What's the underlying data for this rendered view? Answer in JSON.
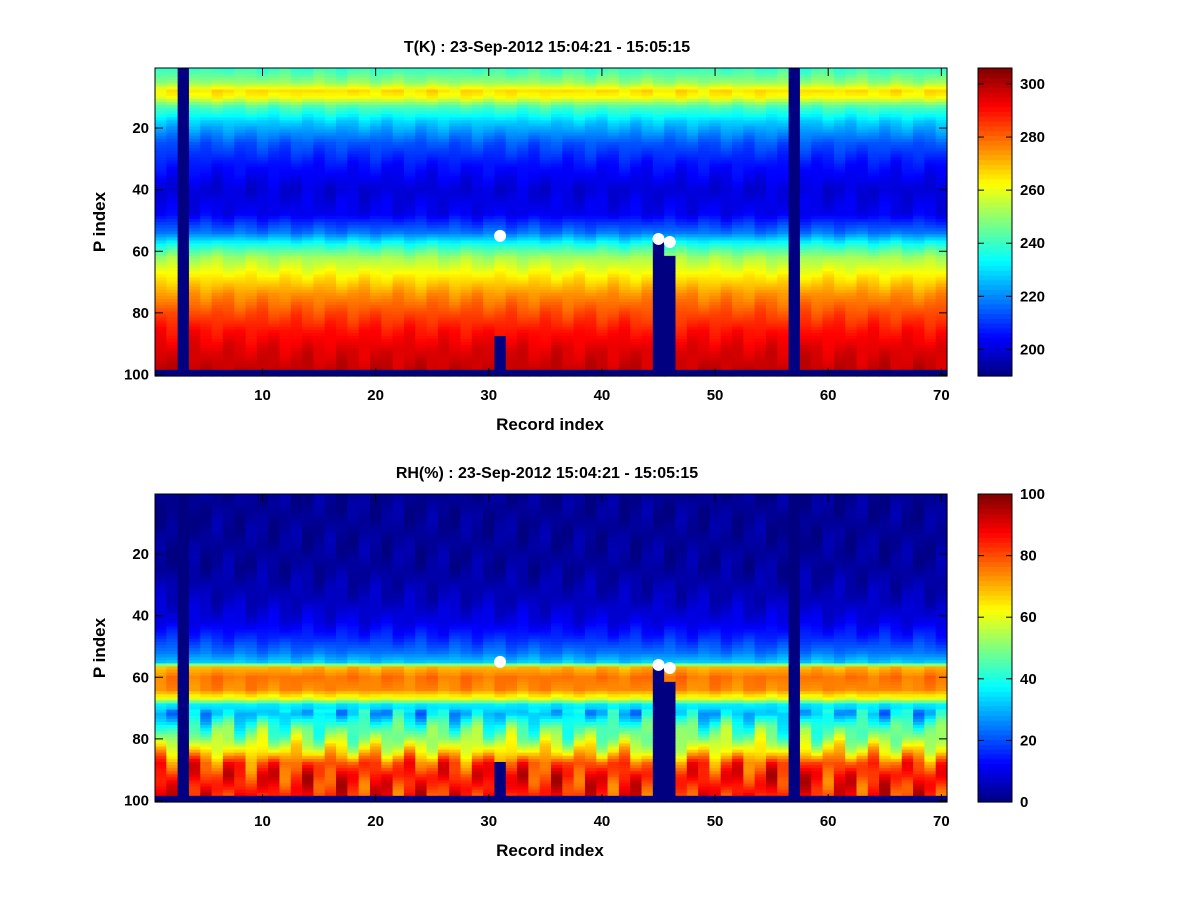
{
  "chart_data": [
    {
      "type": "heatmap",
      "title": "T(K) : 23-Sep-2012 15:04:21 - 15:05:15",
      "xlabel": "Record index",
      "ylabel": "P index",
      "xlim": [
        0.5,
        70.5
      ],
      "ylim": [
        0.5,
        100.5
      ],
      "y_reversed": true,
      "xticks": [
        10,
        20,
        30,
        40,
        50,
        60,
        70
      ],
      "yticks": [
        20,
        40,
        60,
        80,
        100
      ],
      "colormap": "jet",
      "clim": [
        190,
        306
      ],
      "colorbar_ticks": [
        200,
        220,
        240,
        260,
        280,
        300
      ],
      "profile_by_p_index": [
        [
          1,
          240
        ],
        [
          5,
          250
        ],
        [
          8,
          266
        ],
        [
          10,
          262
        ],
        [
          13,
          243
        ],
        [
          18,
          228
        ],
        [
          25,
          214
        ],
        [
          32,
          206
        ],
        [
          40,
          200
        ],
        [
          48,
          203
        ],
        [
          54,
          218
        ],
        [
          58,
          237
        ],
        [
          62,
          252
        ],
        [
          68,
          264
        ],
        [
          74,
          275
        ],
        [
          80,
          283
        ],
        [
          86,
          290
        ],
        [
          92,
          295
        ],
        [
          98,
          298
        ]
      ],
      "missing_records": [
        3,
        57
      ],
      "gaps_from_p_index": [
        {
          "record": 31,
          "from": 88
        },
        {
          "record": 45,
          "from": 56
        },
        {
          "record": 46,
          "from": 62
        }
      ],
      "bottom_fill_from_p_index": 99,
      "markers": [
        {
          "record": 31,
          "p": 55
        },
        {
          "record": 45,
          "p": 56
        },
        {
          "record": 46,
          "p": 57
        }
      ],
      "grid": false
    },
    {
      "type": "heatmap",
      "title": "RH(%) : 23-Sep-2012 15:04:21 - 15:05:15",
      "xlabel": "Record index",
      "ylabel": "P index",
      "xlim": [
        0.5,
        70.5
      ],
      "ylim": [
        0.5,
        100.5
      ],
      "y_reversed": true,
      "xticks": [
        10,
        20,
        30,
        40,
        50,
        60,
        70
      ],
      "yticks": [
        20,
        40,
        60,
        80,
        100
      ],
      "colormap": "jet",
      "clim": [
        0,
        100
      ],
      "colorbar_ticks": [
        0,
        20,
        40,
        60,
        80,
        100
      ],
      "profile_by_p_index": [
        [
          1,
          2
        ],
        [
          25,
          3
        ],
        [
          35,
          6
        ],
        [
          42,
          10
        ],
        [
          47,
          16
        ],
        [
          52,
          24
        ],
        [
          55,
          32
        ],
        [
          57,
          70
        ],
        [
          60,
          76
        ],
        [
          64,
          74
        ],
        [
          67,
          60
        ],
        [
          69,
          36
        ],
        [
          72,
          32
        ],
        [
          76,
          44
        ],
        [
          80,
          52
        ],
        [
          84,
          64
        ],
        [
          88,
          80
        ],
        [
          92,
          85
        ],
        [
          98,
          85
        ]
      ],
      "missing_records": [
        3,
        57
      ],
      "gaps_from_p_index": [
        {
          "record": 31,
          "from": 88
        },
        {
          "record": 45,
          "from": 56
        },
        {
          "record": 46,
          "from": 62
        }
      ],
      "bottom_fill_from_p_index": 99,
      "markers": [
        {
          "record": 31,
          "p": 55
        },
        {
          "record": 45,
          "p": 56
        },
        {
          "record": 46,
          "p": 57
        }
      ],
      "grid": false
    }
  ]
}
